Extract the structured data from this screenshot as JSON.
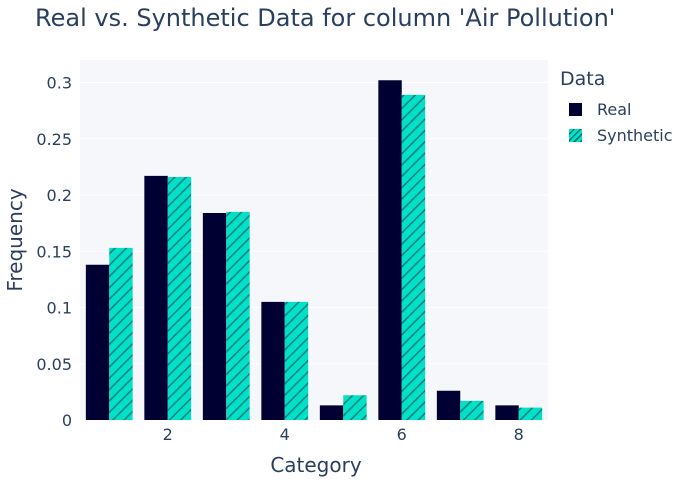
{
  "title": "Real vs. Synthetic Data for column 'Air Pollution'",
  "legend": {
    "title": "Data",
    "items": [
      {
        "label": "Real",
        "color": "#000033"
      },
      {
        "label": "Synthetic",
        "color": "#01E0C9"
      }
    ]
  },
  "chart_data": {
    "type": "bar",
    "title": "Real vs. Synthetic Data for column 'Air Pollution'",
    "xlabel": "Category",
    "ylabel": "Frequency",
    "categories": [
      1,
      2,
      3,
      4,
      5,
      6,
      7,
      8
    ],
    "x_ticks": [
      2,
      4,
      6,
      8
    ],
    "xlim": [
      0.5,
      8.5
    ],
    "ylim": [
      0,
      0.32
    ],
    "y_ticks": [
      0,
      0.05,
      0.1,
      0.15,
      0.2,
      0.25,
      0.3
    ],
    "y_tick_labels": [
      "0",
      "0.05",
      "0.1",
      "0.15",
      "0.2",
      "0.25",
      "0.3"
    ],
    "grid": true,
    "legend_position": "top-right outside",
    "series": [
      {
        "name": "Real",
        "color": "#000033",
        "pattern": "solid",
        "values": [
          0.138,
          0.217,
          0.184,
          0.105,
          0.013,
          0.302,
          0.026,
          0.013
        ]
      },
      {
        "name": "Synthetic",
        "color": "#01E0C9",
        "pattern": "diagonal-hatch",
        "values": [
          0.153,
          0.216,
          0.185,
          0.105,
          0.022,
          0.289,
          0.017,
          0.011
        ]
      }
    ]
  }
}
